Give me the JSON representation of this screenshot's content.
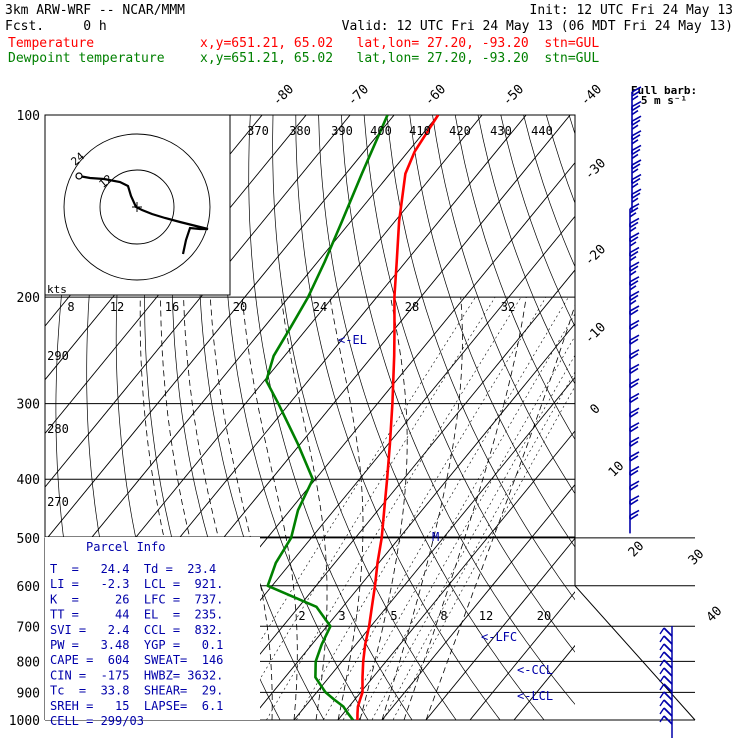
{
  "header": {
    "title": "3km ARW-WRF -- NCAR/MMM",
    "init": "Init: 12 UTC Fri 24 May 13",
    "fcst": "Fcst.     0 h",
    "valid": "Valid: 12 UTC Fri 24 May 13 (06 MDT Fri 24 May 13)"
  },
  "legend": {
    "temp_label": "Temperature",
    "temp_color": "#ff0000",
    "temp_info": "x,y=651.21, 65.02   lat,lon= 27.20, -93.20  stn=GUL",
    "dew_label": "Dewpoint temperature",
    "dew_color": "#008000",
    "dew_info": "x,y=651.21, 65.02   lat,lon= 27.20, -93.20  stn=GUL"
  },
  "barb_label": "Full barb:",
  "barb_unit": "5 m s⁻¹",
  "hodo_unit": "kts",
  "hodo_rings": [
    "12",
    "24"
  ],
  "mixing_ratio_top": [
    "8",
    "12",
    "16",
    "20",
    "24",
    "28",
    "32"
  ],
  "mixing_ratio_low": [
    "2",
    "3",
    "5",
    "8",
    "12",
    "20"
  ],
  "theta_e_top": [
    "370",
    "380",
    "390",
    "400",
    "410",
    "420",
    "430",
    "440"
  ],
  "theta_left": [
    "290",
    "280",
    "270"
  ],
  "skew_temps": [
    "-80",
    "-70",
    "-60",
    "-50",
    "-40",
    "-30",
    "-20",
    "-10",
    "0",
    "10",
    "20",
    "30",
    "40"
  ],
  "levels": {
    "el": "<-EL",
    "lfc": "<-LFC",
    "ccl": "<-CCL",
    "lcl": "<-LCL",
    "m": "M"
  },
  "parcel": {
    "title": "Parcel Info",
    "rows": [
      "T  =   24.4  Td =  23.4",
      "LI =   -2.3  LCL =  921.",
      "K  =     26  LFC =  737.",
      "TT =     44  EL  =  235.",
      "SVI =   2.4  CCL =  832.",
      "PW =   3.48  YGP =   0.1",
      "CAPE =  604  SWEAT=  146",
      "CIN =  -175  HWBZ= 3632.",
      "Tc  =  33.8  SHEAR=  29.",
      "SREH =   15  LAPSE=  6.1",
      "CELL = 299/03"
    ]
  },
  "chart_data": {
    "type": "line",
    "title": "",
    "xlabel": "",
    "ylabel": "",
    "y_scale": "log-pressure",
    "ylim": [
      1000,
      100
    ],
    "pressure_ticks": [
      100,
      200,
      300,
      400,
      500,
      600,
      700,
      800,
      900,
      1000
    ],
    "series": [
      {
        "name": "Temperature",
        "color": "#ff0000",
        "points": [
          [
            1000,
            24.4
          ],
          [
            975,
            23.2
          ],
          [
            950,
            22.0
          ],
          [
            925,
            21.2
          ],
          [
            900,
            20.4
          ],
          [
            850,
            17.6
          ],
          [
            800,
            14.8
          ],
          [
            750,
            12.1
          ],
          [
            700,
            9.6
          ],
          [
            650,
            6.6
          ],
          [
            600,
            3.4
          ],
          [
            550,
            -0.3
          ],
          [
            500,
            -4.0
          ],
          [
            450,
            -8.6
          ],
          [
            400,
            -13.7
          ],
          [
            350,
            -19.6
          ],
          [
            300,
            -26.6
          ],
          [
            250,
            -35.1
          ],
          [
            225,
            -40.2
          ],
          [
            200,
            -46.0
          ],
          [
            175,
            -52.0
          ],
          [
            150,
            -59.0
          ],
          [
            125,
            -66.5
          ],
          [
            115,
            -68.5
          ],
          [
            100,
            -70.0
          ]
        ]
      },
      {
        "name": "Dewpoint temperature",
        "color": "#008000",
        "points": [
          [
            1000,
            23.4
          ],
          [
            975,
            21.0
          ],
          [
            950,
            18.7
          ],
          [
            925,
            15.3
          ],
          [
            900,
            12.0
          ],
          [
            850,
            6.9
          ],
          [
            800,
            4.0
          ],
          [
            750,
            2.2
          ],
          [
            700,
            0.8
          ],
          [
            650,
            -6.0
          ],
          [
            600,
            -21.0
          ],
          [
            550,
            -23.4
          ],
          [
            500,
            -24.6
          ],
          [
            450,
            -28.2
          ],
          [
            400,
            -30.6
          ],
          [
            350,
            -40.5
          ],
          [
            300,
            -52.5
          ],
          [
            275,
            -59.5
          ],
          [
            250,
            -62.5
          ],
          [
            225,
            -63.9
          ],
          [
            200,
            -65.6
          ],
          [
            175,
            -68.4
          ],
          [
            150,
            -72.0
          ],
          [
            125,
            -76.4
          ],
          [
            100,
            -81.5
          ]
        ]
      }
    ]
  }
}
